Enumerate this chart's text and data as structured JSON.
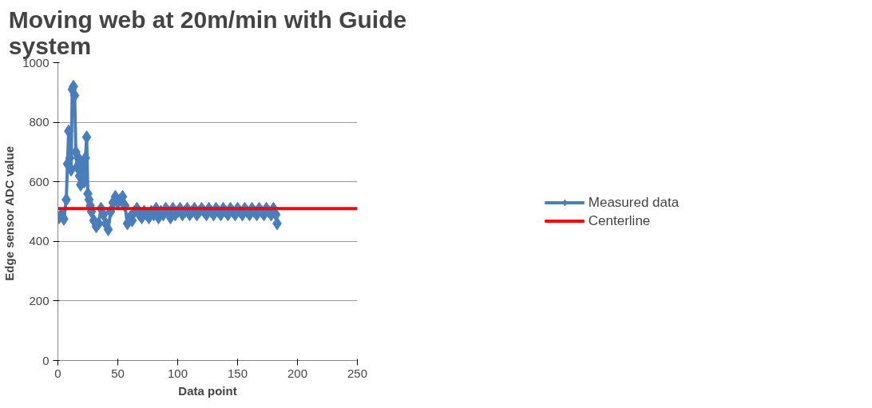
{
  "chart_data": {
    "type": "line",
    "title": "Moving web at 20m/min with Guide system",
    "xlabel": "Data point",
    "ylabel": "Edge sensor  ADC value",
    "xlim": [
      0,
      250
    ],
    "xticks": [
      0,
      50,
      100,
      150,
      200,
      250
    ],
    "ylim": [
      0,
      1000
    ],
    "yticks": [
      0,
      200,
      400,
      600,
      800,
      1000
    ],
    "grid": "y",
    "legend": "right",
    "series": [
      {
        "name": "Measured data",
        "color": "#4a7ebb",
        "marker": "diamond",
        "x": [
          1,
          3,
          5,
          7,
          8,
          9,
          10,
          11,
          12,
          13,
          14,
          15,
          16,
          17,
          18,
          19,
          20,
          21,
          22,
          23,
          24,
          25,
          26,
          27,
          28,
          30,
          32,
          34,
          36,
          38,
          40,
          42,
          44,
          46,
          48,
          50,
          52,
          54,
          56,
          58,
          60,
          62,
          64,
          66,
          68,
          70,
          72,
          74,
          76,
          78,
          80,
          82,
          84,
          86,
          88,
          90,
          92,
          94,
          96,
          98,
          100,
          102,
          104,
          106,
          108,
          110,
          112,
          114,
          116,
          118,
          120,
          122,
          124,
          126,
          128,
          130,
          132,
          134,
          136,
          138,
          140,
          142,
          144,
          146,
          148,
          150,
          152,
          154,
          156,
          158,
          160,
          162,
          164,
          166,
          168,
          170,
          172,
          174,
          176,
          178,
          180,
          182,
          183
        ],
        "values": [
          480,
          490,
          475,
          540,
          660,
          770,
          680,
          640,
          910,
          920,
          890,
          700,
          650,
          680,
          620,
          590,
          660,
          610,
          600,
          680,
          750,
          560,
          540,
          520,
          500,
          470,
          450,
          460,
          510,
          490,
          460,
          440,
          500,
          530,
          550,
          530,
          540,
          550,
          520,
          460,
          480,
          470,
          500,
          510,
          490,
          480,
          500,
          490,
          480,
          500,
          490,
          510,
          480,
          500,
          490,
          510,
          500,
          480,
          510,
          490,
          500,
          510,
          490,
          500,
          510,
          490,
          500,
          510,
          490,
          500,
          510,
          500,
          490,
          510,
          500,
          490,
          510,
          500,
          490,
          510,
          500,
          490,
          510,
          500,
          490,
          510,
          500,
          490,
          510,
          500,
          490,
          510,
          500,
          490,
          510,
          500,
          490,
          510,
          500,
          490,
          510,
          490,
          460
        ]
      },
      {
        "name": "Centerline",
        "color": "#ff0000",
        "marker": "none",
        "x": [
          0,
          250
        ],
        "values": [
          510,
          510
        ]
      }
    ]
  }
}
